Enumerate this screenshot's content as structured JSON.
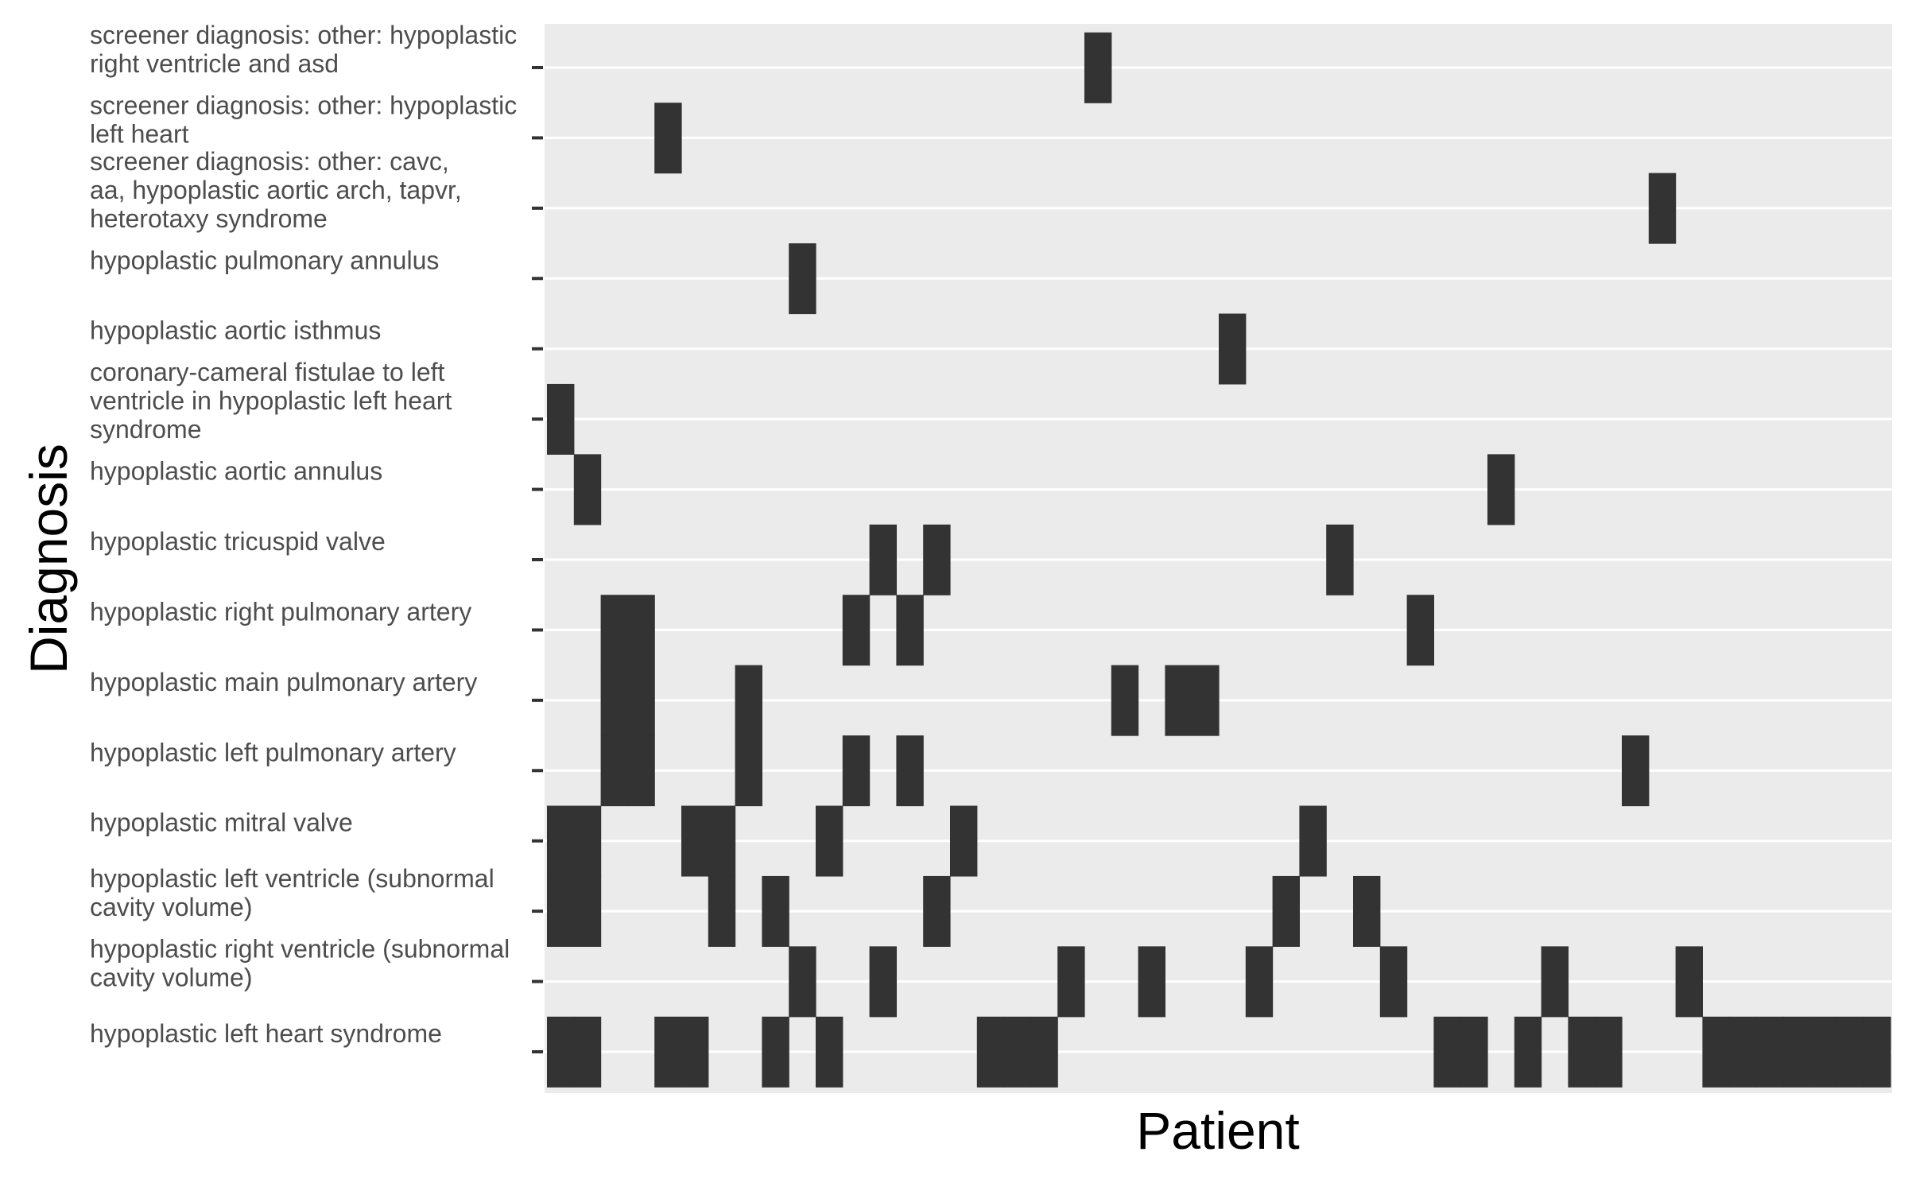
{
  "chart_data": {
    "type": "heatmap",
    "title": "",
    "xlabel": "Patient",
    "ylabel": "Diagnosis",
    "x_tick_labels_shown": false,
    "n_patients": 50,
    "grid": true,
    "legend": "none",
    "panel_color": "#ebebeb",
    "grid_color": "#ffffff",
    "cell_color": "#333333",
    "tick_color": "#333333",
    "label_color": "#4d4d4d",
    "y_categories": [
      {
        "label": "screener diagnosis: other: hypoplastic right ventricle and asd",
        "lines": [
          "screener diagnosis: other: hypoplastic",
          "right ventricle and asd"
        ],
        "patients": [
          20
        ]
      },
      {
        "label": "screener diagnosis: other: hypoplastic left heart",
        "lines": [
          "screener diagnosis: other: hypoplastic",
          "left heart"
        ],
        "patients": [
          4
        ]
      },
      {
        "label": "screener diagnosis: other: cavc, aa, hypoplastic aortic arch, tapvr, heterotaxy syndrome",
        "lines": [
          "screener diagnosis: other: cavc,",
          "aa, hypoplastic aortic arch, tapvr,",
          "heterotaxy syndrome"
        ],
        "patients": [
          41
        ]
      },
      {
        "label": "hypoplastic pulmonary annulus",
        "lines": [
          "hypoplastic pulmonary annulus"
        ],
        "patients": [
          9
        ]
      },
      {
        "label": "hypoplastic aortic isthmus",
        "lines": [
          "hypoplastic aortic isthmus"
        ],
        "patients": [
          25
        ]
      },
      {
        "label": "coronary-cameral fistulae to left ventricle in hypoplastic left heart syndrome",
        "lines": [
          "coronary-cameral fistulae to left",
          "ventricle in hypoplastic left heart",
          "syndrome"
        ],
        "patients": [
          0
        ]
      },
      {
        "label": "hypoplastic aortic annulus",
        "lines": [
          "hypoplastic aortic annulus"
        ],
        "patients": [
          1,
          35
        ]
      },
      {
        "label": "hypoplastic tricuspid valve",
        "lines": [
          "hypoplastic tricuspid valve"
        ],
        "patients": [
          12,
          14,
          29
        ]
      },
      {
        "label": "hypoplastic right pulmonary artery",
        "lines": [
          "hypoplastic right pulmonary artery"
        ],
        "patients": [
          2,
          3,
          11,
          13,
          32
        ]
      },
      {
        "label": "hypoplastic main pulmonary artery",
        "lines": [
          "hypoplastic main pulmonary artery"
        ],
        "patients": [
          2,
          3,
          7,
          21,
          23,
          24
        ]
      },
      {
        "label": "hypoplastic left pulmonary artery",
        "lines": [
          "hypoplastic left pulmonary artery"
        ],
        "patients": [
          2,
          3,
          7,
          11,
          13,
          40
        ]
      },
      {
        "label": "hypoplastic mitral valve",
        "lines": [
          "hypoplastic mitral valve"
        ],
        "patients": [
          0,
          1,
          5,
          6,
          10,
          15,
          28
        ]
      },
      {
        "label": "hypoplastic left ventricle (subnormal cavity volume)",
        "lines": [
          "hypoplastic left ventricle (subnormal",
          "cavity volume)"
        ],
        "patients": [
          0,
          1,
          6,
          8,
          14,
          27,
          30
        ]
      },
      {
        "label": "hypoplastic right ventricle (subnormal cavity volume)",
        "lines": [
          "hypoplastic right ventricle (subnormal",
          "cavity volume)"
        ],
        "patients": [
          9,
          12,
          19,
          22,
          26,
          31,
          37,
          42
        ]
      },
      {
        "label": "hypoplastic left heart syndrome",
        "lines": [
          "hypoplastic left heart syndrome"
        ],
        "patients": [
          0,
          1,
          4,
          5,
          8,
          10,
          16,
          17,
          18,
          33,
          34,
          36,
          38,
          39,
          43,
          44,
          45,
          46,
          47,
          48,
          49
        ]
      }
    ]
  }
}
